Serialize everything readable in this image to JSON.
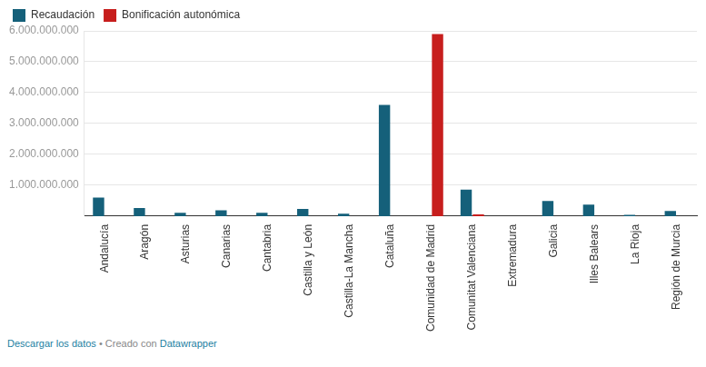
{
  "chart_data": {
    "type": "bar",
    "categories": [
      "Andalucía",
      "Aragón",
      "Asturias",
      "Canarias",
      "Cantabria",
      "Castilla y León",
      "Castilla-La Mancha",
      "Cataluña",
      "Comunidad de Madrid",
      "Comunitat Valenciana",
      "Extremadura",
      "Galicia",
      "Illes Balears",
      "La Rioja",
      "Región de Murcia"
    ],
    "series": [
      {
        "name": "Recaudación",
        "color": "#15607a",
        "values": [
          600000000,
          260000000,
          110000000,
          190000000,
          110000000,
          230000000,
          80000000,
          3600000000,
          0,
          860000000,
          0,
          490000000,
          370000000,
          40000000,
          170000000
        ]
      },
      {
        "name": "Bonificación autonómica",
        "color": "#c71e1d",
        "values": [
          0,
          0,
          0,
          0,
          0,
          0,
          0,
          0,
          5900000000,
          60000000,
          0,
          0,
          0,
          0,
          0
        ]
      }
    ],
    "ylim": [
      0,
      6000000000
    ],
    "yticks": [
      {
        "value": 1000000000,
        "label": "1.000.000.000"
      },
      {
        "value": 2000000000,
        "label": "2.000.000.000"
      },
      {
        "value": 3000000000,
        "label": "3.000.000.000"
      },
      {
        "value": 4000000000,
        "label": "4.000.000.000"
      },
      {
        "value": 5000000000,
        "label": "5.000.000.000"
      },
      {
        "value": 6000000000,
        "label": "6.000.000.000"
      }
    ],
    "grid": true,
    "legend": "top-left",
    "data_labels": false,
    "footer": {
      "download": "Descargar los datos",
      "separator": "•",
      "credit": "Creado con",
      "tool": "Datawrapper"
    }
  }
}
